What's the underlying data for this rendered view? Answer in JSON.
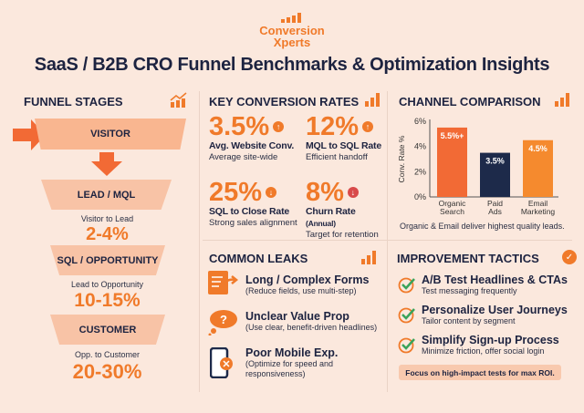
{
  "brand": {
    "line1": "Conversion",
    "line2": "Xperts"
  },
  "title": "SaaS / B2B CRO Funnel Benchmarks & Optimization Insights",
  "funnel": {
    "heading": "FUNNEL STAGES",
    "stages": [
      "VISITOR",
      "LEAD / MQL",
      "SQL / OPPORTUNITY",
      "CUSTOMER"
    ],
    "rates": [
      {
        "label": "Visitor to Lead",
        "value": "2-4%"
      },
      {
        "label": "Lead to Opportunity",
        "value": "10-15%"
      },
      {
        "label": "Opp. to Customer",
        "value": "20-30%"
      }
    ]
  },
  "key_rates": {
    "heading": "KEY CONVERSION RATES",
    "items": [
      {
        "value": "3.5%",
        "label": "Avg. Website Conv.",
        "sub": "Average site-wide",
        "trend": "up"
      },
      {
        "value": "12%",
        "label": "MQL to SQL Rate",
        "sub": "Efficient handoff",
        "trend": "up"
      },
      {
        "value": "25%",
        "label": "SQL to Close Rate",
        "sub": "Strong sales alignment",
        "trend": "down"
      },
      {
        "value": "8%",
        "label": "Churn Rate",
        "label_suffix": "(Annual)",
        "sub": "Target for retention",
        "trend": "down"
      }
    ]
  },
  "channel": {
    "heading": "CHANNEL COMPARISON",
    "note": "Organic & Email deliver highest quality leads.",
    "chart_data": {
      "type": "bar",
      "categories": [
        "Organic Search",
        "Paid Ads",
        "Email Marketing"
      ],
      "values": [
        5.5,
        3.5,
        4.5
      ],
      "data_labels": [
        "5.5%+",
        "3.5%",
        "4.5%"
      ],
      "ylabel": "Conv. Rate %",
      "ylim": [
        0,
        6
      ],
      "yticks": [
        "0%",
        "2%",
        "4%",
        "6%"
      ],
      "colors": [
        "#f26a35",
        "#1d2a4a",
        "#f58a2e"
      ],
      "grid": false
    }
  },
  "leaks": {
    "heading": "COMMON LEAKS",
    "items": [
      {
        "title": "Long / Complex Forms",
        "sub": "(Reduce fields, use multi-step)",
        "icon": "form-icon"
      },
      {
        "title": "Unclear Value Prop",
        "sub": "(Use clear, benefit-driven headlines)",
        "icon": "question-cloud-icon"
      },
      {
        "title": "Poor Mobile Exp.",
        "sub": "(Optimize for speed and responsiveness)",
        "icon": "mobile-error-icon"
      }
    ]
  },
  "tactics": {
    "heading": "IMPROVEMENT TACTICS",
    "items": [
      {
        "title": "A/B Test Headlines & CTAs",
        "sub": "Test messaging frequently"
      },
      {
        "title": "Personalize User Journeys",
        "sub": "Tailor content by segment"
      },
      {
        "title": "Simplify Sign-up Process",
        "sub": "Minimize friction, offer social login"
      }
    ],
    "note": "Focus on high-impact tests for max ROI."
  }
}
